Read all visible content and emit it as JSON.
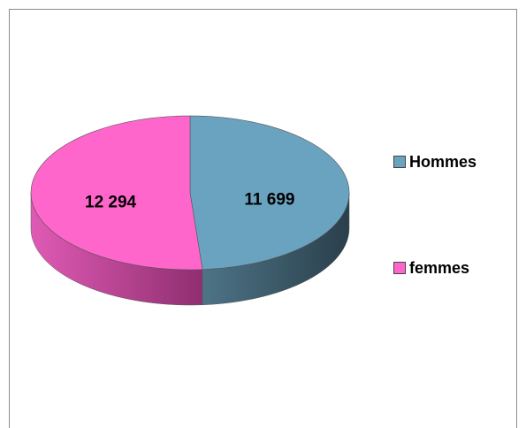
{
  "chart_data": {
    "type": "pie",
    "categories": [
      "Hommes",
      "femmes"
    ],
    "values": [
      11699,
      12294
    ],
    "value_labels": [
      "11 699",
      "12 294"
    ],
    "colors": [
      "#6aa3c0",
      "#ff66cc"
    ],
    "legend": "right"
  }
}
